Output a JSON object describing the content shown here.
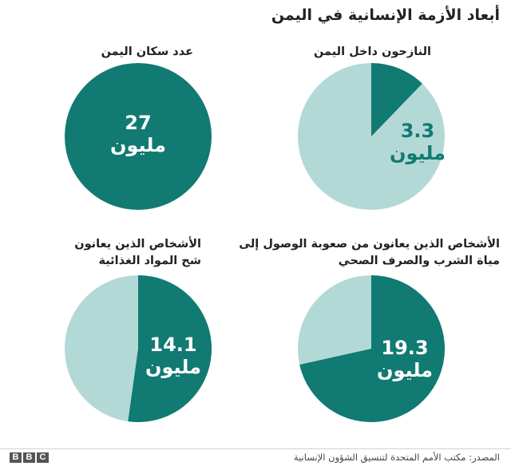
{
  "title": "أبعاد الأزمة الإنسانية في اليمن",
  "colors": {
    "dark": "#117a72",
    "light": "#b3d9d7",
    "white": "#ffffff"
  },
  "chart_data": [
    {
      "type": "pie",
      "title": "النازحون داخل اليمن",
      "label_number": "3.3",
      "label_unit": "مليون",
      "share": 0.122
    },
    {
      "type": "pie",
      "title": "عدد سكان اليمن",
      "label_number": "27",
      "label_unit": "مليون",
      "share": 1.0
    },
    {
      "type": "pie",
      "title_lines": [
        "الأشخاص الذين يعانون من صعوبة الوصول إلى",
        "مياة الشرب والصرف الصحي"
      ],
      "label_number": "19.3",
      "label_unit": "مليون",
      "share": 0.715
    },
    {
      "type": "pie",
      "title_lines": [
        "الأشخاص الذين يعانون",
        "شح المواد الغذائية"
      ],
      "label_number": "14.1",
      "label_unit": "مليون",
      "share": 0.522
    }
  ],
  "footer": {
    "logo": [
      "B",
      "B",
      "C"
    ],
    "source": "المصدر: مكتب الأمم المتحدة لتنسيق الشؤون الإنسانية"
  }
}
